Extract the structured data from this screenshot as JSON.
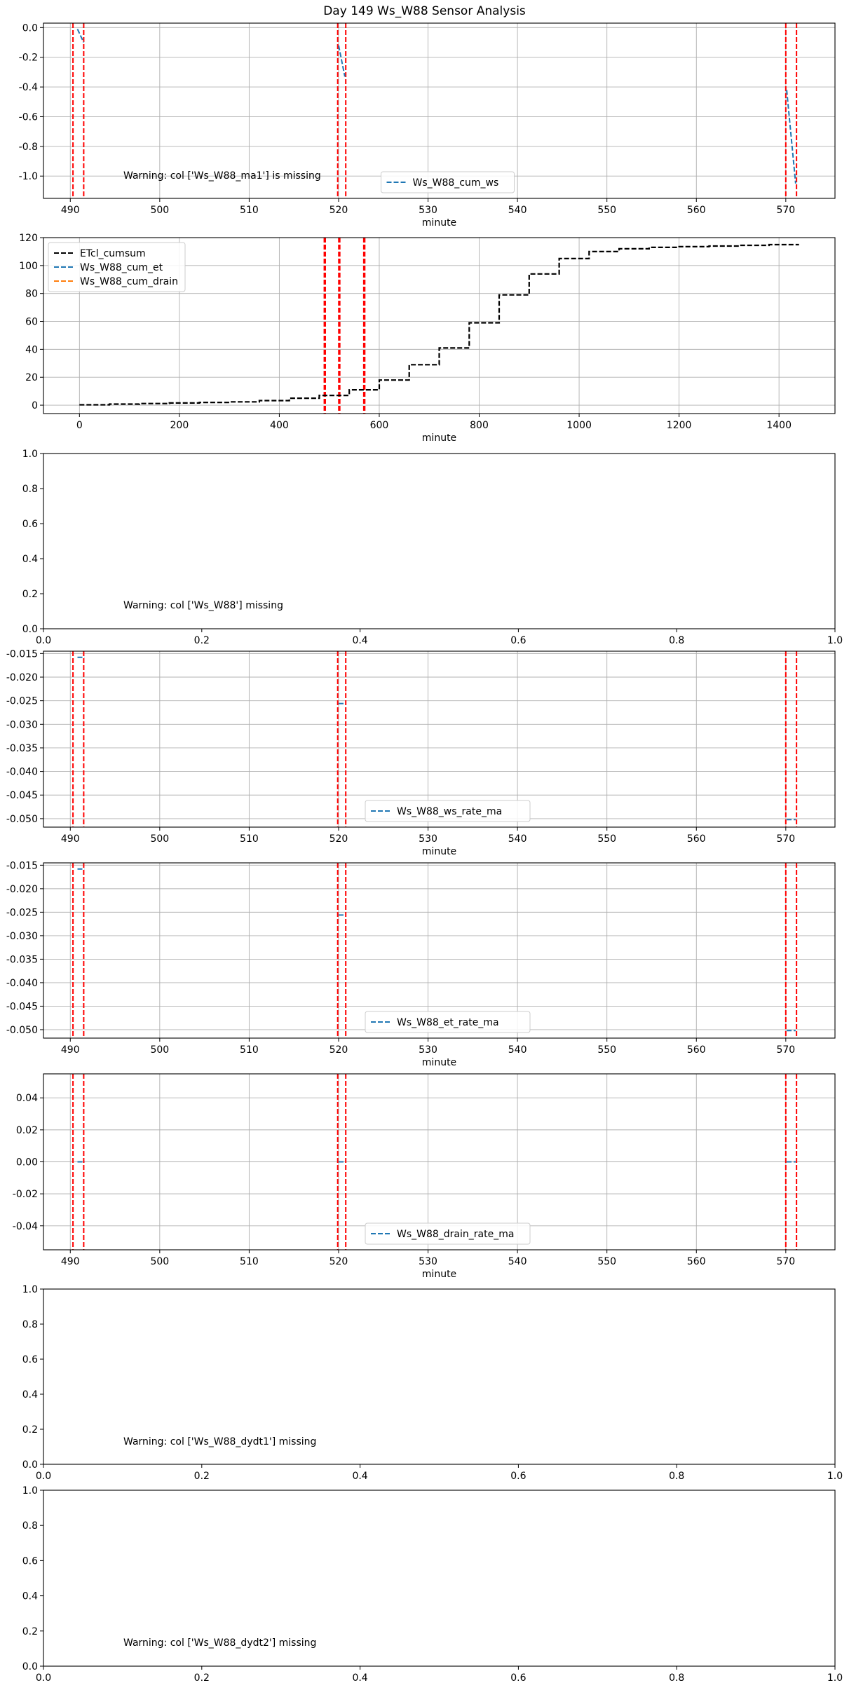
{
  "figure": {
    "title": "Day 149 Ws_W88 Sensor Analysis"
  },
  "colors": {
    "series_blue": "#1f77b4",
    "series_orange": "#ff7f0e",
    "series_black": "#000000",
    "event_red": "#ff0000",
    "grid": "#b0b0b0"
  },
  "chart_data": [
    {
      "type": "line",
      "xlabel": "minute",
      "xlim": [
        487,
        575.5
      ],
      "ylim": [
        -1.15,
        0.03
      ],
      "xticks": [
        490,
        500,
        510,
        520,
        530,
        540,
        550,
        560,
        570
      ],
      "yticks": [
        0.0,
        -0.2,
        -0.4,
        -0.6,
        -0.8,
        -1.0
      ],
      "ytick_labels": [
        "0.0",
        "-0.2",
        "-0.4",
        "-0.6",
        "-0.8",
        "-1.0"
      ],
      "grid": true,
      "legend_position": "lower center",
      "series": [
        {
          "name": "Ws_W88_cum_ws",
          "color": "#1f77b4",
          "style": "dashed",
          "segments": [
            [
              [
                490.8,
                -0.01
              ],
              [
                491.5,
                -0.1
              ]
            ],
            [
              [
                520.0,
                -0.12
              ],
              [
                520.7,
                -0.33
              ]
            ],
            [
              [
                570.1,
                -0.42
              ],
              [
                571.1,
                -1.05
              ]
            ]
          ]
        }
      ],
      "vlines": [
        490.3,
        491.5,
        519.9,
        520.8,
        570.0,
        571.2
      ],
      "warning": "Warning: col ['Ws_W88_ma1'] is missing"
    },
    {
      "type": "line",
      "xlabel": "minute",
      "xlim": [
        -72,
        1512
      ],
      "ylim": [
        -6,
        120
      ],
      "xticks": [
        0,
        200,
        400,
        600,
        800,
        1000,
        1200,
        1400
      ],
      "yticks": [
        0,
        20,
        40,
        60,
        80,
        100,
        120
      ],
      "ytick_labels": [
        "0",
        "20",
        "40",
        "60",
        "80",
        "100",
        "120"
      ],
      "grid": true,
      "legend_position": "upper left",
      "series": [
        {
          "name": "ETcl_cumsum",
          "color": "#000000",
          "style": "dashed",
          "step": true,
          "x": [
            0,
            60,
            120,
            180,
            240,
            300,
            360,
            420,
            480,
            540,
            600,
            660,
            720,
            780,
            840,
            900,
            960,
            1020,
            1080,
            1140,
            1200,
            1260,
            1320,
            1380,
            1440
          ],
          "y": [
            0.3,
            0.8,
            1.2,
            1.6,
            2.0,
            2.4,
            3.3,
            5.0,
            7.0,
            11.0,
            18.0,
            29.0,
            41.0,
            59.0,
            79.0,
            94.0,
            105.0,
            110.0,
            112.0,
            113.0,
            113.5,
            114.0,
            114.5,
            115.0,
            115.0
          ]
        },
        {
          "name": "Ws_W88_cum_et",
          "color": "#1f77b4",
          "style": "dashed"
        },
        {
          "name": "Ws_W88_cum_drain",
          "color": "#ff7f0e",
          "style": "dashed"
        }
      ],
      "vlines": [
        490,
        492,
        519,
        521,
        569,
        571
      ]
    },
    {
      "type": "line",
      "xlim": [
        0,
        1
      ],
      "ylim": [
        0,
        1
      ],
      "xticks": [
        0,
        0.2,
        0.4,
        0.6,
        0.8,
        1.0
      ],
      "xtick_labels": [
        "0.0",
        "0.2",
        "0.4",
        "0.6",
        "0.8",
        "1.0"
      ],
      "yticks": [
        0,
        0.2,
        0.4,
        0.6,
        0.8,
        1.0
      ],
      "ytick_labels": [
        "0.0",
        "0.2",
        "0.4",
        "0.6",
        "0.8",
        "1.0"
      ],
      "grid": false,
      "series": [],
      "warning": "Warning: col ['Ws_W88'] missing"
    },
    {
      "type": "line",
      "xlabel": "minute",
      "xlim": [
        487,
        575.5
      ],
      "ylim": [
        -0.0518,
        -0.0145
      ],
      "xticks": [
        490,
        500,
        510,
        520,
        530,
        540,
        550,
        560,
        570
      ],
      "yticks": [
        -0.015,
        -0.02,
        -0.025,
        -0.03,
        -0.035,
        -0.04,
        -0.045,
        -0.05
      ],
      "ytick_labels": [
        "-0.015",
        "-0.020",
        "-0.025",
        "-0.030",
        "-0.035",
        "-0.040",
        "-0.045",
        "-0.050"
      ],
      "grid": true,
      "legend_position": "lower center",
      "series": [
        {
          "name": "Ws_W88_ws_rate_ma",
          "color": "#1f77b4",
          "style": "dashed",
          "segments": [
            [
              [
                490.8,
                -0.0158
              ],
              [
                491.6,
                -0.0158
              ]
            ],
            [
              [
                520.0,
                -0.0256
              ],
              [
                520.7,
                -0.0256
              ]
            ],
            [
              [
                570.1,
                -0.0502
              ],
              [
                571.1,
                -0.0502
              ]
            ]
          ]
        }
      ],
      "vlines": [
        490.3,
        491.5,
        519.9,
        520.8,
        570.0,
        571.2
      ]
    },
    {
      "type": "line",
      "xlabel": "minute",
      "xlim": [
        487,
        575.5
      ],
      "ylim": [
        -0.0518,
        -0.0145
      ],
      "xticks": [
        490,
        500,
        510,
        520,
        530,
        540,
        550,
        560,
        570
      ],
      "yticks": [
        -0.015,
        -0.02,
        -0.025,
        -0.03,
        -0.035,
        -0.04,
        -0.045,
        -0.05
      ],
      "ytick_labels": [
        "-0.015",
        "-0.020",
        "-0.025",
        "-0.030",
        "-0.035",
        "-0.040",
        "-0.045",
        "-0.050"
      ],
      "grid": true,
      "legend_position": "lower center",
      "series": [
        {
          "name": "Ws_W88_et_rate_ma",
          "color": "#1f77b4",
          "style": "dashed",
          "segments": [
            [
              [
                490.8,
                -0.0158
              ],
              [
                491.6,
                -0.0158
              ]
            ],
            [
              [
                520.0,
                -0.0256
              ],
              [
                520.7,
                -0.0256
              ]
            ],
            [
              [
                570.1,
                -0.0502
              ],
              [
                571.1,
                -0.0502
              ]
            ]
          ]
        }
      ],
      "vlines": [
        490.3,
        491.5,
        519.9,
        520.8,
        570.0,
        571.2
      ]
    },
    {
      "type": "line",
      "xlabel": "minute",
      "xlim": [
        487,
        575.5
      ],
      "ylim": [
        -0.055,
        0.055
      ],
      "xticks": [
        490,
        500,
        510,
        520,
        530,
        540,
        550,
        560,
        570
      ],
      "yticks": [
        0.04,
        0.02,
        0.0,
        -0.02,
        -0.04
      ],
      "ytick_labels": [
        "0.04",
        "0.02",
        "0.00",
        "-0.02",
        "-0.04"
      ],
      "grid": true,
      "legend_position": "lower center",
      "series": [
        {
          "name": "Ws_W88_drain_rate_ma",
          "color": "#1f77b4",
          "style": "dashed",
          "segments": [
            [
              [
                490.8,
                0.0
              ],
              [
                491.6,
                0.0
              ]
            ],
            [
              [
                520.0,
                0.0
              ],
              [
                520.7,
                0.0
              ]
            ],
            [
              [
                570.1,
                0.0
              ],
              [
                571.1,
                0.0
              ]
            ]
          ]
        }
      ],
      "vlines": [
        490.3,
        491.5,
        519.9,
        520.8,
        570.0,
        571.2
      ]
    },
    {
      "type": "line",
      "xlim": [
        0,
        1
      ],
      "ylim": [
        0,
        1
      ],
      "xticks": [
        0,
        0.2,
        0.4,
        0.6,
        0.8,
        1.0
      ],
      "xtick_labels": [
        "0.0",
        "0.2",
        "0.4",
        "0.6",
        "0.8",
        "1.0"
      ],
      "yticks": [
        0,
        0.2,
        0.4,
        0.6,
        0.8,
        1.0
      ],
      "ytick_labels": [
        "0.0",
        "0.2",
        "0.4",
        "0.6",
        "0.8",
        "1.0"
      ],
      "grid": false,
      "series": [],
      "warning": "Warning: col ['Ws_W88_dydt1'] missing"
    },
    {
      "type": "line",
      "xlim": [
        0,
        1
      ],
      "ylim": [
        0,
        1
      ],
      "xticks": [
        0,
        0.2,
        0.4,
        0.6,
        0.8,
        1.0
      ],
      "xtick_labels": [
        "0.0",
        "0.2",
        "0.4",
        "0.6",
        "0.8",
        "1.0"
      ],
      "yticks": [
        0,
        0.2,
        0.4,
        0.6,
        0.8,
        1.0
      ],
      "ytick_labels": [
        "0.0",
        "0.2",
        "0.4",
        "0.6",
        "0.8",
        "1.0"
      ],
      "grid": false,
      "series": [],
      "warning": "Warning: col ['Ws_W88_dydt2'] missing"
    }
  ]
}
